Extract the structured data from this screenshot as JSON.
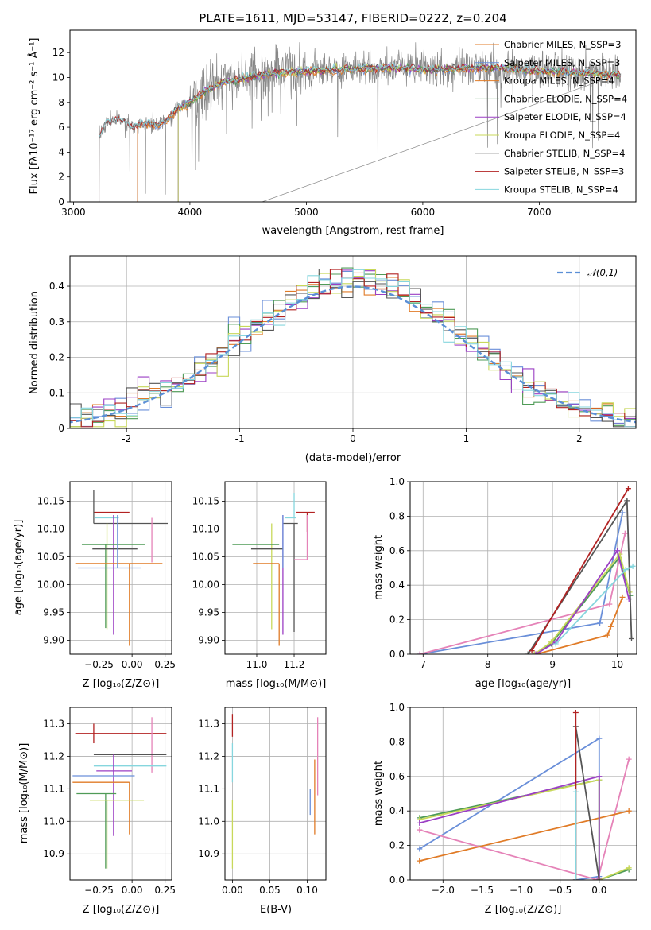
{
  "palette": {
    "blue": "#6a8fd9",
    "orange": "#e07b27",
    "green": "#4f9b57",
    "purple": "#9b3fc4",
    "olive": "#c8d85a",
    "gray": "#555555",
    "red": "#b22222",
    "cyan": "#86d6de",
    "pink": "#e583b8",
    "spectrum": "#888888",
    "gauss": "#5b8fd6"
  },
  "chart_data": [
    {
      "id": "spectrum",
      "type": "line",
      "title": "PLATE=1611, MJD=53147, FIBERID=0222, z=0.204",
      "xlabel": "wavelength [Angstrom, rest frame]",
      "ylabel": "Flux [fλ10⁻¹⁷ erg cm⁻² s⁻¹ Å⁻¹]",
      "xlim": [
        2970,
        7830
      ],
      "ylim": [
        0,
        13.8
      ],
      "xticks": [
        3000,
        4000,
        5000,
        6000,
        7000
      ],
      "yticks": [
        0,
        2,
        4,
        6,
        8,
        10,
        12
      ],
      "grid": false,
      "legend_position": "top-right",
      "continuum": [
        [
          3220,
          5.2
        ],
        [
          3280,
          6.4
        ],
        [
          3400,
          6.6
        ],
        [
          3500,
          6.0
        ],
        [
          3600,
          6.3
        ],
        [
          3750,
          6.2
        ],
        [
          3900,
          7.5
        ],
        [
          4000,
          8.0
        ],
        [
          4150,
          9.0
        ],
        [
          4300,
          9.6
        ],
        [
          4500,
          10.0
        ],
        [
          4750,
          10.4
        ],
        [
          5000,
          10.5
        ],
        [
          5200,
          10.6
        ],
        [
          5500,
          10.7
        ],
        [
          5800,
          10.8
        ],
        [
          6000,
          10.6
        ],
        [
          6300,
          10.7
        ],
        [
          6600,
          10.8
        ],
        [
          7000,
          10.5
        ],
        [
          7300,
          10.4
        ],
        [
          7700,
          10.2
        ]
      ],
      "series": [
        {
          "name": "Chabrier MILES, N_SSP=3",
          "color_key": "orange",
          "start": 3550
        },
        {
          "name": "Salpeter MILES, N_SSP=3",
          "color_key": "blue",
          "start": 3550
        },
        {
          "name": "Kroupa MILES, N_SSP=4",
          "color_key": "orange",
          "start": 3550
        },
        {
          "name": "Chabrier ELODIE, N_SSP=4",
          "color_key": "green",
          "start": 3900
        },
        {
          "name": "Salpeter ELODIE, N_SSP=4",
          "color_key": "purple",
          "start": 3900
        },
        {
          "name": "Kroupa ELODIE, N_SSP=4",
          "color_key": "olive",
          "start": 3900
        },
        {
          "name": "Chabrier STELIB, N_SSP=4",
          "color_key": "gray",
          "start": 3220
        },
        {
          "name": "Salpeter STELIB, N_SSP=3",
          "color_key": "red",
          "start": 3220
        },
        {
          "name": "Kroupa STELIB, N_SSP=4",
          "color_key": "cyan",
          "start": 3220
        }
      ]
    },
    {
      "id": "residuals",
      "type": "histogram",
      "xlabel": "(data-model)/error",
      "ylabel": "Normed distribution",
      "xlim": [
        -2.5,
        2.5
      ],
      "ylim": [
        0,
        0.485
      ],
      "xticks": [
        -2,
        -1,
        0,
        1,
        2
      ],
      "yticks": [
        0.0,
        0.1,
        0.2,
        0.3,
        0.4
      ],
      "grid": true,
      "legend_position": "top-right",
      "legend": "𝒩(0,1)",
      "bin_width": 0.1,
      "series_colors": [
        "blue",
        "orange",
        "green",
        "purple",
        "olive",
        "gray",
        "red",
        "cyan"
      ]
    },
    {
      "id": "age-vs-z",
      "type": "errorbar",
      "xlabel": "Z [log₁₀(Z/Z⊙)]",
      "ylabel": "age  [log₁₀(age/yr)]",
      "xlim": [
        -0.47,
        0.3
      ],
      "ylim": [
        9.875,
        10.185
      ],
      "xticks": [
        -0.25,
        0.0,
        0.25
      ],
      "xtick_labels": [
        "−0.25",
        "0.00",
        "0.25"
      ],
      "yticks": [
        9.9,
        9.95,
        10.0,
        10.05,
        10.1,
        10.15
      ],
      "ytick_labels": [
        "9.90",
        "9.95",
        "10.00",
        "10.05",
        "10.10",
        "10.15"
      ],
      "grid": true,
      "points": [
        {
          "color_key": "red",
          "x": -0.29,
          "y": 10.13,
          "xlo": 0.0,
          "xhi": 0.27,
          "ylo": 0.0,
          "yhi": 0.0
        },
        {
          "color_key": "cyan",
          "x": -0.28,
          "y": 10.12,
          "xlo": 0.0,
          "xhi": 0.18,
          "ylo": 0.0,
          "yhi": 0.0
        },
        {
          "color_key": "gray",
          "x": -0.29,
          "y": 10.11,
          "xlo": 0.0,
          "xhi": 0.56,
          "ylo": 0.0,
          "yhi": 0.06
        },
        {
          "color_key": "pink",
          "x": 0.15,
          "y": 10.04,
          "xlo": 0.0,
          "xhi": 0.0,
          "ylo": 0.0,
          "yhi": 0.08
        },
        {
          "color_key": "purple",
          "x": -0.14,
          "y": 10.055,
          "xlo": 0.0,
          "xhi": 0.0,
          "ylo": 0.145,
          "yhi": 0.07
        },
        {
          "color_key": "olive",
          "x": -0.19,
          "y": 10.05,
          "xlo": 0.0,
          "xhi": 0.0,
          "ylo": 0.13,
          "yhi": 0.06
        },
        {
          "color_key": "green",
          "x": -0.2,
          "y": 10.072,
          "xlo": 0.18,
          "xhi": 0.3,
          "ylo": 0.15,
          "yhi": 0.0
        },
        {
          "color_key": "gray",
          "x": -0.2,
          "y": 10.064,
          "xlo": 0.1,
          "xhi": 0.24,
          "ylo": 0.0,
          "yhi": 0.0
        },
        {
          "color_key": "orange",
          "x": -0.02,
          "y": 10.038,
          "xlo": 0.41,
          "xhi": 0.25,
          "ylo": 0.148,
          "yhi": 0.0
        },
        {
          "color_key": "blue",
          "x": -0.11,
          "y": 10.03,
          "xlo": 0.3,
          "xhi": 0.18,
          "ylo": 0.0,
          "yhi": 0.095
        }
      ]
    },
    {
      "id": "age-vs-mass",
      "type": "errorbar",
      "xlabel": "mass [log₁₀(M/M⊙)]",
      "ylabel": "",
      "xlim": [
        10.83,
        11.37
      ],
      "ylim": [
        9.875,
        10.185
      ],
      "xticks": [
        11.0,
        11.2
      ],
      "xtick_labels": [
        "11.0",
        "11.2"
      ],
      "yticks": [
        9.9,
        9.95,
        10.0,
        10.05,
        10.1,
        10.15
      ],
      "ytick_labels": [
        "9.90",
        "9.95",
        "10.00",
        "10.05",
        "10.10",
        "10.15"
      ],
      "grid": true,
      "points": [
        {
          "color_key": "red",
          "x": 11.27,
          "y": 10.13,
          "xlo": 0.06,
          "xhi": 0.04,
          "ylo": 0.035,
          "yhi": 0.0
        },
        {
          "color_key": "cyan",
          "x": 11.2,
          "y": 10.12,
          "xlo": 0.05,
          "xhi": 0.01,
          "ylo": 0.0,
          "yhi": 0.045
        },
        {
          "color_key": "gray",
          "x": 11.2,
          "y": 10.11,
          "xlo": 0.06,
          "xhi": 0.02,
          "ylo": 0.195,
          "yhi": 0.0
        },
        {
          "color_key": "pink",
          "x": 11.27,
          "y": 10.045,
          "xlo": 0.07,
          "xhi": 0.0,
          "ylo": 0.0,
          "yhi": 0.08
        },
        {
          "color_key": "purple",
          "x": 11.14,
          "y": 10.055,
          "xlo": 0.0,
          "xhi": 0.0,
          "ylo": 0.145,
          "yhi": 0.07
        },
        {
          "color_key": "olive",
          "x": 11.08,
          "y": 10.05,
          "xlo": 0.0,
          "xhi": 0.0,
          "ylo": 0.13,
          "yhi": 0.06
        },
        {
          "color_key": "green",
          "x": 11.09,
          "y": 10.072,
          "xlo": 0.22,
          "xhi": 0.03,
          "ylo": 0.0,
          "yhi": 0.0
        },
        {
          "color_key": "gray",
          "x": 11.14,
          "y": 10.064,
          "xlo": 0.17,
          "xhi": 0.0,
          "ylo": 0.0,
          "yhi": 0.0
        },
        {
          "color_key": "orange",
          "x": 11.12,
          "y": 10.038,
          "xlo": 0.14,
          "xhi": 0.0,
          "ylo": 0.148,
          "yhi": 0.0
        },
        {
          "color_key": "blue",
          "x": 11.14,
          "y": 10.03,
          "xlo": 0.0,
          "xhi": 0.0,
          "ylo": 0.0,
          "yhi": 0.095
        }
      ]
    },
    {
      "id": "mass-weight-vs-age",
      "type": "line",
      "xlabel": "age  [log₁₀(age/yr)]",
      "ylabel": "mass weight",
      "xlim": [
        6.8,
        10.3
      ],
      "ylim": [
        0,
        1.0
      ],
      "xticks": [
        7,
        8,
        9,
        10
      ],
      "yticks": [
        0.0,
        0.2,
        0.4,
        0.6,
        0.8,
        1.0
      ],
      "ytick_labels": [
        "0.0",
        "0.2",
        "0.4",
        "0.6",
        "0.8",
        "1.0"
      ],
      "grid": true,
      "series": [
        {
          "color_key": "blue",
          "points": [
            [
              6.95,
              0.0
            ],
            [
              9.73,
              0.18
            ],
            [
              10.08,
              0.82
            ]
          ]
        },
        {
          "color_key": "pink",
          "points": [
            [
              6.95,
              0.0
            ],
            [
              9.88,
              0.29
            ],
            [
              10.12,
              0.7
            ]
          ]
        },
        {
          "color_key": "orange",
          "points": [
            [
              8.75,
              0.0
            ],
            [
              9.85,
              0.11
            ],
            [
              9.9,
              0.16
            ],
            [
              10.08,
              0.33
            ]
          ]
        },
        {
          "color_key": "green",
          "points": [
            [
              8.72,
              0.0
            ],
            [
              8.98,
              0.06
            ],
            [
              10.03,
              0.56
            ],
            [
              10.2,
              0.34
            ]
          ]
        },
        {
          "color_key": "olive",
          "points": [
            [
              8.72,
              0.0
            ],
            [
              8.98,
              0.07
            ],
            [
              10.04,
              0.58
            ],
            [
              10.19,
              0.36
            ]
          ]
        },
        {
          "color_key": "purple",
          "points": [
            [
              8.74,
              0.0
            ],
            [
              9.05,
              0.07
            ],
            [
              10.0,
              0.6
            ],
            [
              10.18,
              0.32
            ]
          ]
        },
        {
          "color_key": "gray",
          "points": [
            [
              8.62,
              0.0
            ],
            [
              10.15,
              0.89
            ],
            [
              10.22,
              0.09
            ]
          ]
        },
        {
          "color_key": "red",
          "points": [
            [
              8.68,
              0.02
            ],
            [
              10.17,
              0.96
            ]
          ]
        },
        {
          "color_key": "cyan",
          "points": [
            [
              9.05,
              0.06
            ],
            [
              10.13,
              0.49
            ],
            [
              10.24,
              0.51
            ]
          ]
        }
      ]
    },
    {
      "id": "mass-vs-z",
      "type": "errorbar",
      "xlabel": "Z [log₁₀(Z/Z⊙)]",
      "ylabel": "mass [log₁₀(M/M⊙)]",
      "xlim": [
        -0.47,
        0.3
      ],
      "ylim": [
        10.82,
        11.35
      ],
      "xticks": [
        -0.25,
        0.0,
        0.25
      ],
      "xtick_labels": [
        "−0.25",
        "0.00",
        "0.25"
      ],
      "yticks": [
        10.9,
        11.0,
        11.1,
        11.2,
        11.3
      ],
      "ytick_labels": [
        "10.9",
        "11.0",
        "11.1",
        "11.2",
        "11.3"
      ],
      "grid": true,
      "points": [
        {
          "color_key": "red",
          "x": -0.29,
          "y": 11.27,
          "xlo": 0.14,
          "xhi": 0.55,
          "ylo": 0.03,
          "yhi": 0.03
        },
        {
          "color_key": "pink",
          "x": 0.15,
          "y": 11.27,
          "xlo": 0.0,
          "xhi": 0.0,
          "ylo": 0.12,
          "yhi": 0.05
        },
        {
          "color_key": "gray",
          "x": -0.29,
          "y": 11.205,
          "xlo": 0.0,
          "xhi": 0.55,
          "ylo": 0.0,
          "yhi": 0.0
        },
        {
          "color_key": "cyan",
          "x": -0.29,
          "y": 11.17,
          "xlo": 0.0,
          "xhi": 0.55,
          "ylo": 0.0,
          "yhi": 0.0
        },
        {
          "color_key": "purple",
          "x": -0.14,
          "y": 11.155,
          "xlo": 0.13,
          "xhi": 0.14,
          "ylo": 0.2,
          "yhi": 0.05
        },
        {
          "color_key": "blue",
          "x": -0.11,
          "y": 11.14,
          "xlo": 0.34,
          "xhi": 0.13,
          "ylo": 0.0,
          "yhi": 0.0
        },
        {
          "color_key": "orange",
          "x": -0.02,
          "y": 11.12,
          "xlo": 0.43,
          "xhi": 0.0,
          "ylo": 0.16,
          "yhi": 0.0
        },
        {
          "color_key": "green",
          "x": -0.2,
          "y": 11.085,
          "xlo": 0.22,
          "xhi": 0.08,
          "ylo": 0.23,
          "yhi": 0.0
        },
        {
          "color_key": "olive",
          "x": -0.19,
          "y": 11.065,
          "xlo": 0.13,
          "xhi": 0.28,
          "ylo": 0.21,
          "yhi": 0.0
        }
      ]
    },
    {
      "id": "mass-vs-ebv",
      "type": "errorbar",
      "xlabel": "E(B-V)",
      "ylabel": "",
      "xlim": [
        -0.01,
        0.125
      ],
      "ylim": [
        10.82,
        11.35
      ],
      "xticks": [
        0.0,
        0.05,
        0.1
      ],
      "xtick_labels": [
        "0.00",
        "0.05",
        "0.10"
      ],
      "yticks": [
        10.9,
        11.0,
        11.1,
        11.2,
        11.3
      ],
      "ytick_labels": [
        "10.9",
        "11.0",
        "11.1",
        "11.2",
        "11.3"
      ],
      "grid": true,
      "points": [
        {
          "color_key": "red",
          "x": 0.0,
          "y": 11.27,
          "xlo": 0.0,
          "xhi": 0.0,
          "ylo": 0.01,
          "yhi": 0.06
        },
        {
          "color_key": "cyan",
          "x": 0.0,
          "y": 11.17,
          "xlo": 0.0,
          "xhi": 0.0,
          "ylo": 0.05,
          "yhi": 0.07
        },
        {
          "color_key": "olive",
          "x": 0.0,
          "y": 11.065,
          "xlo": 0.0,
          "xhi": 0.0,
          "ylo": 0.21,
          "yhi": 0.0
        },
        {
          "color_key": "blue",
          "x": 0.104,
          "y": 11.1,
          "xlo": 0.0,
          "xhi": 0.0,
          "ylo": 0.08,
          "yhi": 0.0
        },
        {
          "color_key": "orange",
          "x": 0.11,
          "y": 11.1,
          "xlo": 0.0,
          "xhi": 0.0,
          "ylo": 0.14,
          "yhi": 0.09
        },
        {
          "color_key": "pink",
          "x": 0.114,
          "y": 11.2,
          "xlo": 0.0,
          "xhi": 0.0,
          "ylo": 0.12,
          "yhi": 0.12
        }
      ]
    },
    {
      "id": "mass-weight-vs-z",
      "type": "line",
      "xlabel": "Z [log₁₀(Z/Z⊙)]",
      "ylabel": "mass weight",
      "xlim": [
        -2.42,
        0.48
      ],
      "ylim": [
        0,
        1.0
      ],
      "xticks": [
        -2.0,
        -1.5,
        -1.0,
        -0.5,
        0.0
      ],
      "xtick_labels": [
        "−2.0",
        "−1.5",
        "−1.0",
        "−0.5",
        "0.0"
      ],
      "yticks": [
        0.0,
        0.2,
        0.4,
        0.6,
        0.8,
        1.0
      ],
      "ytick_labels": [
        "0.0",
        "0.2",
        "0.4",
        "0.6",
        "0.8",
        "1.0"
      ],
      "grid": true,
      "series": [
        {
          "color_key": "blue",
          "points": [
            [
              -2.3,
              0.18
            ],
            [
              0.0,
              0.82
            ],
            [
              0.0,
              0.02
            ],
            [
              -0.3,
              0.0
            ]
          ]
        },
        {
          "color_key": "pink",
          "points": [
            [
              -2.3,
              0.29
            ],
            [
              -0.02,
              0.0
            ],
            [
              0.38,
              0.7
            ]
          ]
        },
        {
          "color_key": "orange",
          "points": [
            [
              -2.3,
              0.11
            ],
            [
              0.38,
              0.4
            ]
          ]
        },
        {
          "color_key": "green",
          "points": [
            [
              -2.3,
              0.36
            ],
            [
              0.0,
              0.58
            ],
            [
              0.0,
              0.0
            ],
            [
              0.38,
              0.06
            ]
          ]
        },
        {
          "color_key": "olive",
          "points": [
            [
              -2.3,
              0.35
            ],
            [
              0.0,
              0.58
            ],
            [
              0.0,
              0.0
            ],
            [
              0.38,
              0.07
            ]
          ]
        },
        {
          "color_key": "purple",
          "points": [
            [
              -2.3,
              0.33
            ],
            [
              0.0,
              0.6
            ],
            [
              0.0,
              0.01
            ]
          ]
        },
        {
          "color_key": "gray",
          "points": [
            [
              -0.3,
              0.0
            ],
            [
              -0.3,
              0.89
            ],
            [
              0.0,
              0.0
            ]
          ]
        },
        {
          "color_key": "red",
          "points": [
            [
              -0.3,
              0.0
            ],
            [
              -0.3,
              0.97
            ]
          ]
        },
        {
          "color_key": "cyan",
          "points": [
            [
              -0.3,
              0.0
            ],
            [
              -0.3,
              0.51
            ]
          ]
        }
      ]
    }
  ]
}
